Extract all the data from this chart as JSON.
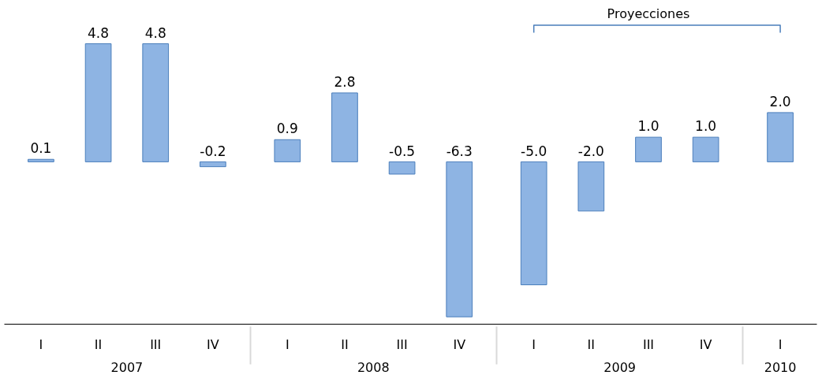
{
  "chart_data": {
    "type": "bar",
    "categories": [
      "I",
      "II",
      "III",
      "IV",
      "I",
      "II",
      "III",
      "IV",
      "I",
      "II",
      "III",
      "IV",
      "I"
    ],
    "values": [
      0.1,
      4.8,
      4.8,
      -0.2,
      0.9,
      2.8,
      -0.5,
      -6.3,
      -5.0,
      -2.0,
      1.0,
      1.0,
      2.0
    ],
    "color": "#8eb4e3",
    "value_labels": [
      "0.1",
      "4.8",
      "4.8",
      "-0.2",
      "0.9",
      "2.8",
      "-0.5",
      "-6.3",
      "-5.0",
      "-2.0",
      "1.0",
      "1.0",
      "2.0"
    ],
    "annotations": [
      "Proyecciones",
      "2007",
      "2008",
      "2009",
      "2010"
    ],
    "grid": false
  }
}
